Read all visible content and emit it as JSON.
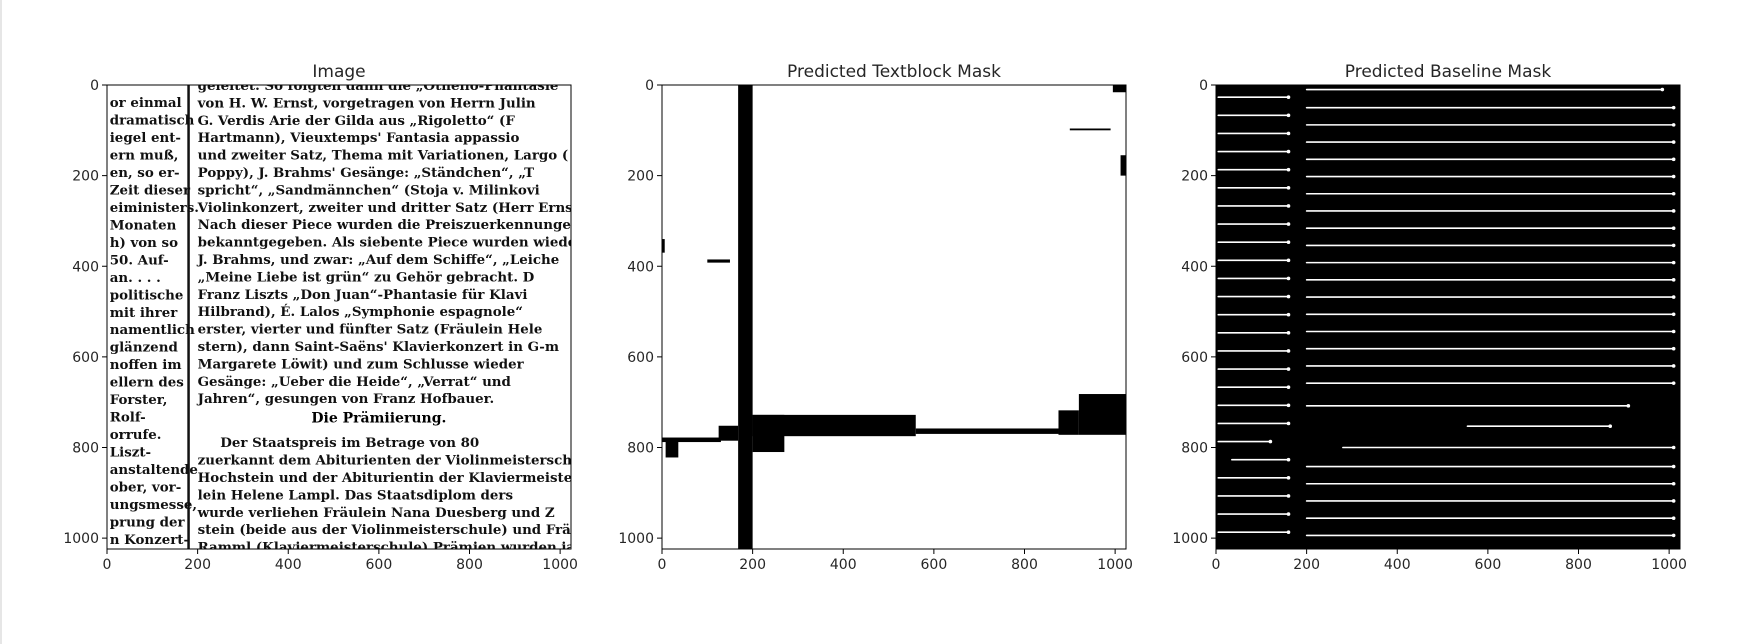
{
  "chart_data": [
    {
      "type": "heatmap",
      "title": "Image",
      "xlim": [
        0,
        1024
      ],
      "ylim": [
        1024,
        0
      ],
      "xticks": [
        0,
        200,
        400,
        600,
        800,
        1000
      ],
      "yticks": [
        0,
        200,
        400,
        600,
        800,
        1000
      ],
      "column_rule_x": 180,
      "left_column_lines": [
        "or einmal",
        "dramatisch",
        "iegel ent-",
        "ern muß,",
        "en, so er-",
        "Zeit dieser",
        "eiministers.",
        "Monaten",
        "h) von so",
        "50. Auf-",
        "an. . . .",
        "politische",
        "mit ihrer",
        "namentlich",
        "glänzend",
        "noffen im",
        "ellern des",
        "Forster,",
        "Rolf-",
        "orrufe.",
        "Liszt-",
        "anstaltende",
        "ober, vor-",
        "ungsmesse,",
        "prung der",
        "n Konzert-"
      ],
      "right_column_lines": [
        "geleitet. So folgten dann die „Othello-Phantasie",
        "von H. W. Ernst, vorgetragen von Herrn Julin",
        "G. Verdis Arie der Gilda aus „Rigoletto“ (F",
        "Hartmann), Vieuxtemps' Fantasia appassio",
        "und zweiter Satz, Thema mit Variationen, Largo (",
        "Poppy), J. Brahms' Gesänge: „Ständchen“, „T",
        "spricht“, „Sandmännchen“ (Stoja v. Milinkovi",
        "Violinkonzert, zweiter und dritter Satz (Herr Ernst",
        "Nach dieser Piece wurden die Preiszuerkennungen v",
        "bekanntgegeben. Als siebente Piece wurden wieder G",
        "J. Brahms, und zwar: „Auf dem Schiffe“, „Leiche",
        "„Meine Liebe ist grün“ zu Gehör gebracht. D",
        "Franz Liszts „Don Juan“-Phantasie für Klavi",
        "Hilbrand), É. Lalos „Symphonie espagnole“",
        "erster, vierter und fünfter Satz (Fräulein Hele",
        "stern), dann Saint-Saëns' Klavierkonzert in G-m",
        "Margarete Löwit) und zum Schlusse wieder",
        "Gesänge: „Ueber die Heide“, „Verrat“ und",
        "Jahren“, gesungen von Franz Hofbauer."
      ],
      "section_heading": "Die Prämiierung.",
      "right_column_lines_after_heading": [
        "Der Staatspreis im Betrage von 80",
        "zuerkannt dem Abiturienten der Violinmeisterschule",
        "Hochstein und der Abiturientin der Klaviermeiste",
        "lein Helene Lampl. Das Staatsdiplom ders",
        "wurde verliehen Fräulein Nana Duesberg und Z",
        "stein (beide aus der Violinmeisterschule) und Frä",
        "Ramml (Klaviermeisterschule) Prämien wurden ja"
      ]
    },
    {
      "type": "heatmap",
      "title": "Predicted Textblock Mask",
      "xlim": [
        0,
        1024
      ],
      "ylim": [
        1024,
        0
      ],
      "xticks": [
        0,
        200,
        400,
        600,
        800,
        1000
      ],
      "yticks": [
        0,
        200,
        400,
        600,
        800,
        1000
      ],
      "foreground": "#000000",
      "background": "#ffffff",
      "regions": [
        {
          "x0": 168,
          "x1": 200,
          "y0": 0,
          "y1": 1024
        },
        {
          "x0": 0,
          "x1": 130,
          "y0": 778,
          "y1": 788
        },
        {
          "x0": 8,
          "x1": 36,
          "y0": 780,
          "y1": 822
        },
        {
          "x0": 125,
          "x1": 168,
          "y0": 752,
          "y1": 785
        },
        {
          "x0": 200,
          "x1": 270,
          "y0": 728,
          "y1": 810
        },
        {
          "x0": 200,
          "x1": 560,
          "y0": 728,
          "y1": 775
        },
        {
          "x0": 560,
          "x1": 875,
          "y0": 758,
          "y1": 770
        },
        {
          "x0": 875,
          "x1": 920,
          "y0": 718,
          "y1": 772
        },
        {
          "x0": 920,
          "x1": 1024,
          "y0": 682,
          "y1": 772
        },
        {
          "x0": 995,
          "x1": 1024,
          "y0": 0,
          "y1": 16
        },
        {
          "x0": 1012,
          "x1": 1024,
          "y0": 155,
          "y1": 200
        },
        {
          "x0": 100,
          "x1": 150,
          "y0": 385,
          "y1": 392
        },
        {
          "x0": 0,
          "x1": 6,
          "y0": 340,
          "y1": 370
        },
        {
          "x0": 900,
          "x1": 990,
          "y0": 96,
          "y1": 100
        }
      ]
    },
    {
      "type": "heatmap",
      "title": "Predicted Baseline Mask",
      "xlim": [
        0,
        1024
      ],
      "ylim": [
        1024,
        0
      ],
      "xticks": [
        0,
        200,
        400,
        600,
        800,
        1000
      ],
      "yticks": [
        0,
        200,
        400,
        600,
        800,
        1000
      ],
      "foreground": "#ffffff",
      "background": "#000000",
      "left_column_baselines": [
        {
          "y": 27,
          "x0": 5,
          "x1": 160
        },
        {
          "y": 67,
          "x0": 5,
          "x1": 160
        },
        {
          "y": 107,
          "x0": 5,
          "x1": 160
        },
        {
          "y": 147,
          "x0": 5,
          "x1": 160
        },
        {
          "y": 187,
          "x0": 5,
          "x1": 160
        },
        {
          "y": 227,
          "x0": 5,
          "x1": 160
        },
        {
          "y": 267,
          "x0": 5,
          "x1": 160
        },
        {
          "y": 307,
          "x0": 5,
          "x1": 160
        },
        {
          "y": 347,
          "x0": 5,
          "x1": 160
        },
        {
          "y": 387,
          "x0": 5,
          "x1": 160
        },
        {
          "y": 427,
          "x0": 5,
          "x1": 160
        },
        {
          "y": 467,
          "x0": 5,
          "x1": 160
        },
        {
          "y": 507,
          "x0": 5,
          "x1": 160
        },
        {
          "y": 547,
          "x0": 5,
          "x1": 160
        },
        {
          "y": 587,
          "x0": 5,
          "x1": 160
        },
        {
          "y": 627,
          "x0": 5,
          "x1": 160
        },
        {
          "y": 667,
          "x0": 5,
          "x1": 160
        },
        {
          "y": 707,
          "x0": 5,
          "x1": 160
        },
        {
          "y": 747,
          "x0": 5,
          "x1": 160
        },
        {
          "y": 787,
          "x0": 5,
          "x1": 120
        },
        {
          "y": 827,
          "x0": 35,
          "x1": 160
        },
        {
          "y": 867,
          "x0": 5,
          "x1": 160
        },
        {
          "y": 907,
          "x0": 5,
          "x1": 160
        },
        {
          "y": 947,
          "x0": 5,
          "x1": 160
        },
        {
          "y": 987,
          "x0": 5,
          "x1": 160
        }
      ],
      "right_column_baselines": [
        {
          "y": 10,
          "x0": 200,
          "x1": 985
        },
        {
          "y": 50,
          "x0": 200,
          "x1": 1010
        },
        {
          "y": 88,
          "x0": 200,
          "x1": 1010
        },
        {
          "y": 126,
          "x0": 200,
          "x1": 1010
        },
        {
          "y": 164,
          "x0": 200,
          "x1": 1010
        },
        {
          "y": 202,
          "x0": 200,
          "x1": 1010
        },
        {
          "y": 240,
          "x0": 200,
          "x1": 1010
        },
        {
          "y": 278,
          "x0": 200,
          "x1": 1010
        },
        {
          "y": 316,
          "x0": 200,
          "x1": 1010
        },
        {
          "y": 354,
          "x0": 200,
          "x1": 1010
        },
        {
          "y": 392,
          "x0": 200,
          "x1": 1010
        },
        {
          "y": 430,
          "x0": 200,
          "x1": 1010
        },
        {
          "y": 468,
          "x0": 200,
          "x1": 1010
        },
        {
          "y": 506,
          "x0": 200,
          "x1": 1010
        },
        {
          "y": 544,
          "x0": 200,
          "x1": 1010
        },
        {
          "y": 582,
          "x0": 200,
          "x1": 1010
        },
        {
          "y": 620,
          "x0": 200,
          "x1": 1010
        },
        {
          "y": 658,
          "x0": 200,
          "x1": 1010
        },
        {
          "y": 708,
          "x0": 200,
          "x1": 910
        },
        {
          "y": 753,
          "x0": 555,
          "x1": 870
        },
        {
          "y": 800,
          "x0": 280,
          "x1": 1010
        },
        {
          "y": 842,
          "x0": 200,
          "x1": 1010
        },
        {
          "y": 880,
          "x0": 200,
          "x1": 1010
        },
        {
          "y": 918,
          "x0": 200,
          "x1": 1010
        },
        {
          "y": 956,
          "x0": 200,
          "x1": 1010
        },
        {
          "y": 994,
          "x0": 200,
          "x1": 1010
        }
      ]
    }
  ]
}
